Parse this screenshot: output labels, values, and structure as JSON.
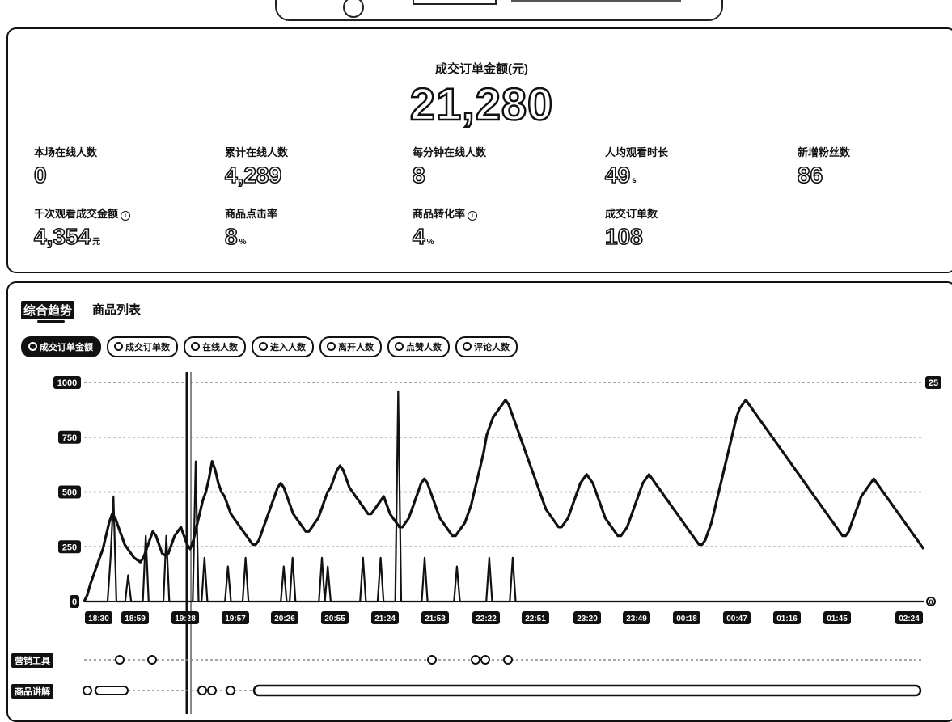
{
  "stats": {
    "gmv_label": "成交订单金额(元)",
    "gmv_value": "21,280",
    "items": [
      {
        "label": "本场在线人数",
        "value": "0",
        "unit": "",
        "info": false
      },
      {
        "label": "累计在线人数",
        "value": "4,289",
        "unit": "",
        "info": false
      },
      {
        "label": "每分钟在线人数",
        "value": "8",
        "unit": "",
        "info": false
      },
      {
        "label": "人均观看时长",
        "value": "49",
        "unit": "s",
        "info": false
      },
      {
        "label": "新增粉丝数",
        "value": "86",
        "unit": "",
        "info": false
      },
      {
        "label": "千次观看成交金额",
        "value": "4,354",
        "unit": "元",
        "info": true
      },
      {
        "label": "商品点击率",
        "value": "8",
        "unit": "%",
        "info": false
      },
      {
        "label": "商品转化率",
        "value": "4",
        "unit": "%",
        "info": true
      },
      {
        "label": "成交订单数",
        "value": "108",
        "unit": "",
        "info": false
      }
    ]
  },
  "tabs": {
    "trend": "综合趋势",
    "products": "商品列表"
  },
  "chips": [
    {
      "label": "成交订单金额",
      "active": true
    },
    {
      "label": "成交订单数",
      "active": false
    },
    {
      "label": "在线人数",
      "active": false
    },
    {
      "label": "进入人数",
      "active": false
    },
    {
      "label": "离开人数",
      "active": false
    },
    {
      "label": "点赞人数",
      "active": false
    },
    {
      "label": "评论人数",
      "active": false
    }
  ],
  "rows": {
    "tools": "营销工具",
    "explain": "商品讲解"
  },
  "chart_data": {
    "type": "line",
    "x_ticks": [
      "18:30",
      "18:59",
      "19:28",
      "19:57",
      "20:26",
      "20:55",
      "21:24",
      "21:53",
      "22:22",
      "22:51",
      "23:20",
      "23:49",
      "00:18",
      "00:47",
      "01:16",
      "01:45",
      "02:24"
    ],
    "y_left_ticks": [
      0,
      250,
      500,
      750,
      1000
    ],
    "y_right_ticks": [
      "0",
      "25"
    ],
    "ylim": [
      0,
      1000
    ],
    "series": [
      {
        "values": [
          0,
          30,
          80,
          120,
          160,
          200,
          240,
          300,
          360,
          400,
          380,
          340,
          300,
          260,
          240,
          220,
          200,
          190,
          180,
          200,
          240,
          280,
          320,
          300,
          260,
          220,
          210,
          220,
          260,
          300,
          320,
          340,
          300,
          260,
          240,
          280,
          340,
          400,
          460,
          500,
          560,
          640,
          600,
          540,
          500,
          480,
          440,
          400,
          380,
          360,
          340,
          320,
          300,
          280,
          260,
          260,
          280,
          320,
          360,
          400,
          440,
          480,
          520,
          540,
          520,
          480,
          440,
          400,
          380,
          360,
          340,
          320,
          320,
          340,
          360,
          380,
          420,
          460,
          500,
          520,
          560,
          600,
          620,
          600,
          560,
          520,
          500,
          480,
          460,
          440,
          420,
          400,
          400,
          420,
          440,
          460,
          480,
          440,
          400,
          380,
          360,
          340,
          340,
          360,
          380,
          420,
          460,
          500,
          540,
          560,
          540,
          500,
          460,
          420,
          380,
          360,
          340,
          320,
          300,
          300,
          320,
          340,
          360,
          400,
          440,
          500,
          560,
          620,
          680,
          760,
          800,
          840,
          860,
          880,
          900,
          920,
          900,
          860,
          820,
          780,
          740,
          700,
          660,
          620,
          580,
          540,
          500,
          460,
          420,
          400,
          380,
          360,
          340,
          340,
          360,
          380,
          420,
          460,
          500,
          540,
          560,
          580,
          560,
          540,
          500,
          460,
          420,
          380,
          360,
          340,
          320,
          300,
          300,
          320,
          340,
          380,
          420,
          460,
          500,
          540,
          560,
          580,
          560,
          540,
          520,
          500,
          480,
          460,
          440,
          420,
          400,
          380,
          360,
          340,
          320,
          300,
          280,
          260,
          260,
          280,
          320,
          360,
          420,
          480,
          540,
          600,
          660,
          720,
          780,
          840,
          880,
          900,
          920,
          900,
          880,
          860,
          840,
          820,
          800,
          780,
          760,
          740,
          720,
          700,
          680,
          660,
          640,
          620,
          600,
          580,
          560,
          540,
          520,
          500,
          480,
          460,
          440,
          420,
          400,
          380,
          360,
          340,
          320,
          300,
          300,
          320,
          360,
          400,
          440,
          480,
          500,
          520,
          540,
          560,
          540,
          520,
          500,
          480,
          460,
          440,
          420,
          400,
          380,
          360,
          340,
          320,
          300,
          280,
          260,
          240
        ]
      },
      {
        "values": [
          0,
          0,
          0,
          0,
          0,
          0,
          0,
          0,
          0,
          200,
          480,
          0,
          0,
          0,
          0,
          120,
          0,
          0,
          0,
          0,
          0,
          300,
          0,
          0,
          0,
          0,
          0,
          0,
          300,
          0,
          0,
          0,
          0,
          0,
          0,
          0,
          0,
          0,
          640,
          0,
          0,
          200,
          0,
          0,
          0,
          0,
          0,
          0,
          0,
          160,
          0,
          0,
          0,
          0,
          0,
          200,
          0,
          0,
          0,
          0,
          0,
          0,
          0,
          0,
          0,
          0,
          0,
          0,
          160,
          0,
          0,
          200,
          0,
          0,
          0,
          0,
          0,
          0,
          0,
          0,
          0,
          200,
          0,
          160,
          0,
          0,
          0,
          0,
          0,
          0,
          0,
          0,
          0,
          0,
          0,
          200,
          0,
          0,
          0,
          0,
          0,
          200,
          0,
          0,
          0,
          0,
          0,
          960,
          0,
          0,
          0,
          0,
          0,
          0,
          0,
          0,
          200,
          0,
          0,
          0,
          0,
          0,
          0,
          0,
          0,
          0,
          0,
          160,
          0,
          0,
          0,
          0,
          0,
          0,
          0,
          0,
          0,
          0,
          200,
          0,
          0,
          0,
          0,
          0,
          0,
          0,
          200,
          0,
          0,
          0,
          0,
          0,
          0,
          0,
          0,
          0,
          0,
          0,
          0,
          0,
          0,
          0,
          0,
          0,
          0,
          0,
          0,
          0,
          0,
          0,
          0,
          0,
          0,
          0,
          0,
          0,
          0,
          0,
          0,
          0,
          0,
          0,
          0,
          0,
          0,
          0,
          0,
          0,
          0,
          0,
          0,
          0,
          0,
          0,
          0,
          0,
          0,
          0,
          0,
          0,
          0,
          0,
          0,
          0,
          0,
          0,
          0,
          0,
          0,
          0,
          0,
          0,
          0,
          0,
          0,
          0,
          0,
          0,
          0,
          0,
          0,
          0,
          0,
          0,
          0,
          0,
          0,
          0,
          0,
          0,
          0,
          0,
          0,
          0,
          0,
          0,
          0,
          0,
          0,
          0,
          0,
          0,
          0,
          0,
          0,
          0,
          0,
          0,
          0,
          0,
          0,
          0,
          0,
          0,
          0,
          0,
          0,
          0,
          0,
          0,
          0,
          0,
          0,
          0,
          0,
          0,
          0,
          0,
          0,
          0,
          0,
          0,
          0,
          0,
          0,
          0,
          0,
          0,
          0,
          0,
          0,
          0,
          0,
          0,
          0,
          0,
          0
        ]
      }
    ]
  }
}
